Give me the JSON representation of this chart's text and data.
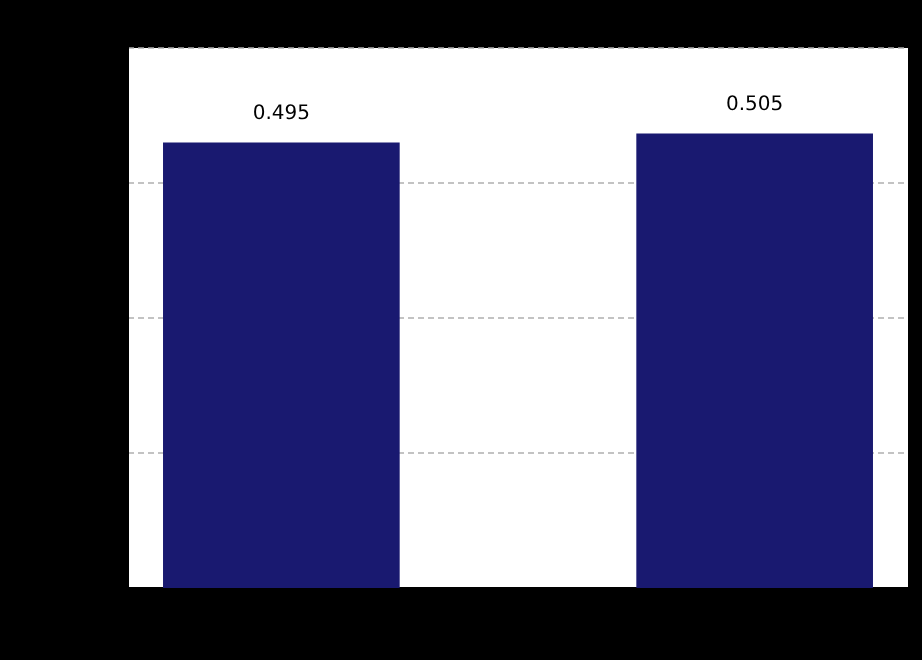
{
  "chart_data": {
    "type": "bar",
    "categories": [
      null,
      null
    ],
    "values": [
      0.495,
      0.505
    ],
    "color": "#191970",
    "ylim": [
      0,
      0.6
    ],
    "yticks": [
      {
        "value": 0,
        "label": null
      },
      {
        "value": 0.15,
        "label": null
      },
      {
        "value": 0.3,
        "label": null
      },
      {
        "value": 0.45,
        "label": null
      },
      {
        "value": 0.6,
        "label": null
      }
    ],
    "grid": "y",
    "data_labels": true
  }
}
